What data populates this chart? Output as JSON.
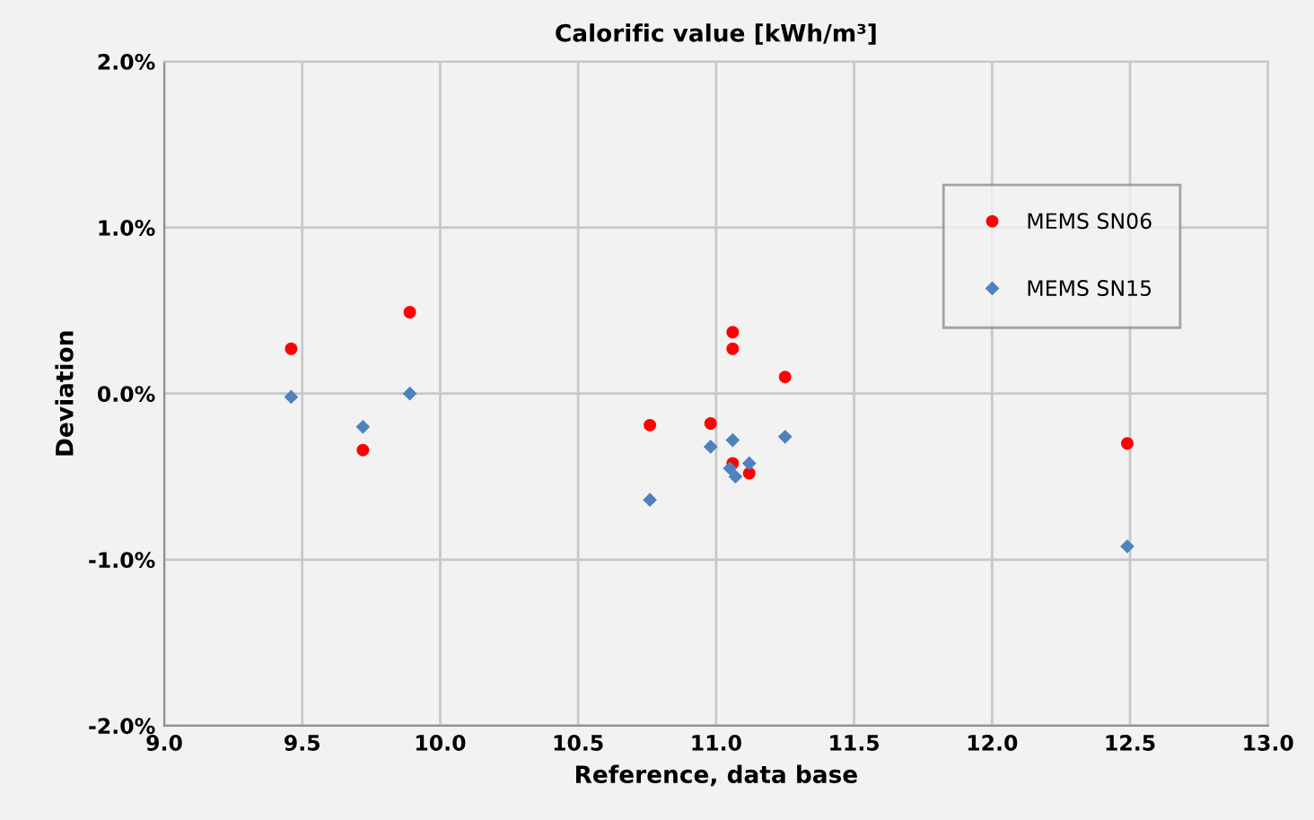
{
  "chart_data": {
    "type": "scatter",
    "title": "Calorific value [kWh/m³]",
    "xlabel": "Reference, data base",
    "ylabel": "Deviation",
    "xlim": [
      9.0,
      13.0
    ],
    "xticks": [
      {
        "value": 9.0,
        "label": "9.0"
      },
      {
        "value": 9.5,
        "label": "9.5"
      },
      {
        "value": 10.0,
        "label": "10.0"
      },
      {
        "value": 10.5,
        "label": "10.5"
      },
      {
        "value": 11.0,
        "label": "11.0"
      },
      {
        "value": 11.5,
        "label": "11.5"
      },
      {
        "value": 12.0,
        "label": "12.0"
      },
      {
        "value": 12.5,
        "label": "12.5"
      },
      {
        "value": 13.0,
        "label": "13.0"
      }
    ],
    "ylim": [
      -2.0,
      2.0
    ],
    "yticks": [
      {
        "value": -2.0,
        "label": "-2.0%"
      },
      {
        "value": -1.0,
        "label": "-1.0%"
      },
      {
        "value": 0.0,
        "label": "0.0%"
      },
      {
        "value": 1.0,
        "label": "1.0%"
      },
      {
        "value": 2.0,
        "label": "2.0%"
      }
    ],
    "grid": true,
    "legend": "top right",
    "series": [
      {
        "name": "MEMS SN06",
        "color": "#ff0000",
        "marker": "circle",
        "x": [
          9.46,
          9.72,
          9.89,
          10.76,
          10.98,
          11.06,
          11.06,
          11.06,
          11.12,
          11.25,
          12.49
        ],
        "values": [
          0.27,
          -0.34,
          0.49,
          -0.19,
          -0.18,
          0.37,
          0.27,
          -0.42,
          -0.48,
          0.1,
          -0.3
        ]
      },
      {
        "name": "MEMS SN15",
        "color": "#4f81bd",
        "marker": "diamond",
        "x": [
          9.46,
          9.72,
          9.89,
          10.76,
          10.98,
          11.06,
          11.05,
          11.07,
          11.12,
          11.25,
          12.49
        ],
        "values": [
          -0.02,
          -0.2,
          0.0,
          -0.64,
          -0.32,
          -0.28,
          -0.45,
          -0.5,
          -0.42,
          -0.26,
          -0.92
        ]
      }
    ]
  }
}
